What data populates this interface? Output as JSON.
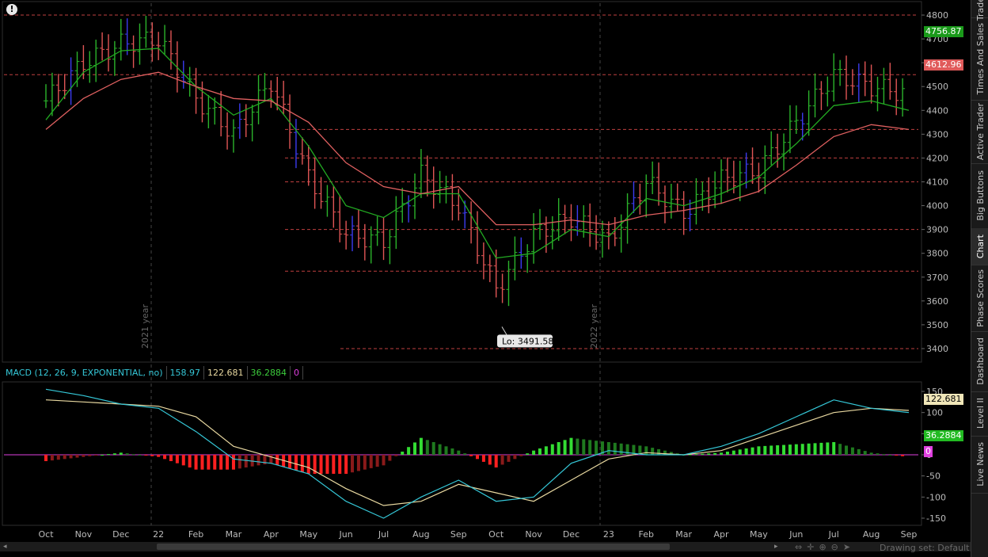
{
  "window": {
    "alert_icon": "!",
    "drawing_set": "Drawing set: Default"
  },
  "sidebar": {
    "tabs": [
      {
        "label": "Trade"
      },
      {
        "label": "Times And Sales"
      },
      {
        "label": "Active Trader"
      },
      {
        "label": "Big Buttons"
      },
      {
        "label": "Chart",
        "active": true
      },
      {
        "label": "Phase Scores"
      },
      {
        "label": "Dashboard"
      },
      {
        "label": "Level II"
      },
      {
        "label": "Live News"
      }
    ]
  },
  "price_panel": {
    "y_ticks": [
      3400,
      3500,
      3600,
      3700,
      3800,
      3900,
      4000,
      4100,
      4200,
      4300,
      4400,
      4500,
      4600,
      4700,
      4800
    ],
    "last_price": "4756.87",
    "last_price_color": "#1a9a1a",
    "ref_price": "4612.96",
    "ref_price_color": "#e05a5a",
    "low_label": "Lo: 3491.58",
    "year_markers": [
      "2021 year",
      "2022 year"
    ],
    "resistance_levels": [
      4800,
      4550,
      4320,
      4200,
      4100,
      3900,
      3725,
      3400
    ],
    "colors": {
      "up_bar": "#2bb32b",
      "down_bar": "#e05555",
      "blue_bar": "#3b3bf0",
      "ema_fast": "#22aa22",
      "ema_slow": "#e06060",
      "level_line": "#c04040"
    }
  },
  "macd": {
    "label": "MACD (12, 26, 9, EXPONENTIAL, no)",
    "value": "158.97",
    "avg": "122.681",
    "diff": "36.2884",
    "zero": "0",
    "y_ticks": [
      150,
      100,
      50,
      0,
      -50,
      -100,
      -150
    ],
    "value_color": "#35c8d8",
    "avg_color": "#e8d8a0",
    "diff_color": "#3ccc3c"
  },
  "x_axis": {
    "labels": [
      "Oct",
      "Nov",
      "Dec",
      "22",
      "Feb",
      "Mar",
      "Apr",
      "May",
      "Jun",
      "Jul",
      "Aug",
      "Sep",
      "Oct",
      "Nov",
      "Dec",
      "23",
      "Feb",
      "Mar",
      "Apr",
      "May",
      "Jun",
      "Jul",
      "Aug",
      "Sep"
    ]
  },
  "chart_data": {
    "type": "line",
    "title": "",
    "x": [
      "Oct",
      "Nov",
      "Dec",
      "22",
      "Feb",
      "Mar",
      "Apr",
      "May",
      "Jun",
      "Jul",
      "Aug",
      "Sep",
      "Oct",
      "Nov",
      "Dec",
      "23",
      "Feb",
      "Mar",
      "Apr",
      "May",
      "Jun",
      "Jul",
      "Aug",
      "Sep"
    ],
    "series": [
      {
        "values": [
          4440,
          4600,
          4680,
          4700,
          4450,
          4300,
          4520,
          4120,
          3880,
          3850,
          4130,
          4000,
          3650,
          3880,
          3950,
          3850,
          4100,
          3970,
          4110,
          4150,
          4350,
          4550,
          4500,
          4470
        ]
      },
      {
        "values": [
          4360,
          4560,
          4650,
          4660,
          4500,
          4380,
          4450,
          4250,
          4000,
          3950,
          4050,
          4050,
          3780,
          3800,
          3900,
          3870,
          4030,
          4000,
          4050,
          4120,
          4260,
          4420,
          4440,
          4400
        ]
      },
      {
        "values": [
          4320,
          4450,
          4530,
          4560,
          4500,
          4450,
          4440,
          4350,
          4180,
          4080,
          4050,
          4080,
          3920,
          3920,
          3940,
          3920,
          3960,
          3980,
          4010,
          4060,
          4170,
          4290,
          4340,
          4320
        ]
      }
    ],
    "ylim": [
      3350,
      4850
    ],
    "macd_series": {
      "value": [
        155,
        140,
        120,
        110,
        55,
        -10,
        -20,
        -45,
        -110,
        -150,
        -100,
        -60,
        -110,
        -100,
        -20,
        10,
        0,
        0,
        20,
        50,
        90,
        130,
        110,
        100
      ],
      "avg": [
        130,
        125,
        120,
        115,
        90,
        20,
        -5,
        -30,
        -80,
        -120,
        -110,
        -70,
        -90,
        -110,
        -60,
        -10,
        5,
        0,
        10,
        40,
        70,
        100,
        110,
        105
      ],
      "diff": [
        -15,
        -5,
        5,
        -5,
        -35,
        -35,
        -20,
        -45,
        -45,
        -25,
        40,
        10,
        -30,
        10,
        40,
        30,
        20,
        0,
        5,
        20,
        25,
        30,
        5,
        -5
      ]
    },
    "macd_ylim": [
      -165,
      165
    ],
    "legend": "none",
    "grid": false
  }
}
